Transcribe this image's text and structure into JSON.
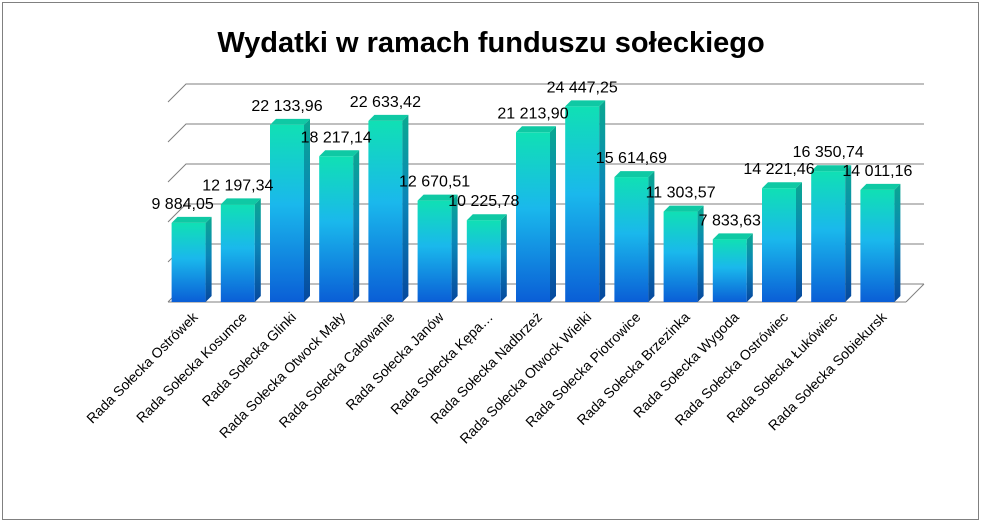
{
  "chart_data": {
    "type": "bar",
    "title": "Wydatki  w ramach funduszu sołeckiego",
    "xlabel": "",
    "ylabel": "",
    "categories": [
      "Rada Sołecka Ostrówek",
      "Rada Sołecka Kosumce",
      "Rada Sołecka Glinki",
      "Rada Sołecka Otwock Mały",
      "Rada Sołecka Całowanie",
      "Rada Sołecka Janów",
      "Rada Sołecka Kępa…",
      "Rada Sołecka Nadbrzeż",
      "Rada Sołecka Otwock Wielki",
      "Rada Sołecka Piotrowice",
      "Rada Sołecka Brzezinka",
      "Rada Sołecka Wygoda",
      "Rada Sołecka Ostrówiec",
      "Rada Sołecka Łukówiec",
      "Rada Sołecka Sobiekursk"
    ],
    "values": [
      9884.05,
      12197.34,
      22133.96,
      18217.14,
      22633.42,
      12670.51,
      10225.78,
      21213.9,
      24447.25,
      15614.69,
      11303.57,
      7833.63,
      14221.46,
      16350.74,
      14011.16
    ],
    "data_labels": [
      "9 884,05",
      "12 197,34",
      "22 133,96",
      "18 217,14",
      "22 633,42",
      "12 670,51",
      "10 225,78",
      "21 213,90",
      "24 447,25",
      "15 614,69",
      "11 303,57",
      "7 833,63",
      "14 221,46",
      "16 350,74",
      "14 011,16"
    ],
    "ylim": [
      0,
      25000
    ],
    "grid": true,
    "legend": "none",
    "bar_colors": {
      "top": "#10e0b4",
      "mid": "#1ab0ec",
      "bottom": "#0a5ed6",
      "side": "#0878b0",
      "cap": "#0fc9a4"
    }
  }
}
